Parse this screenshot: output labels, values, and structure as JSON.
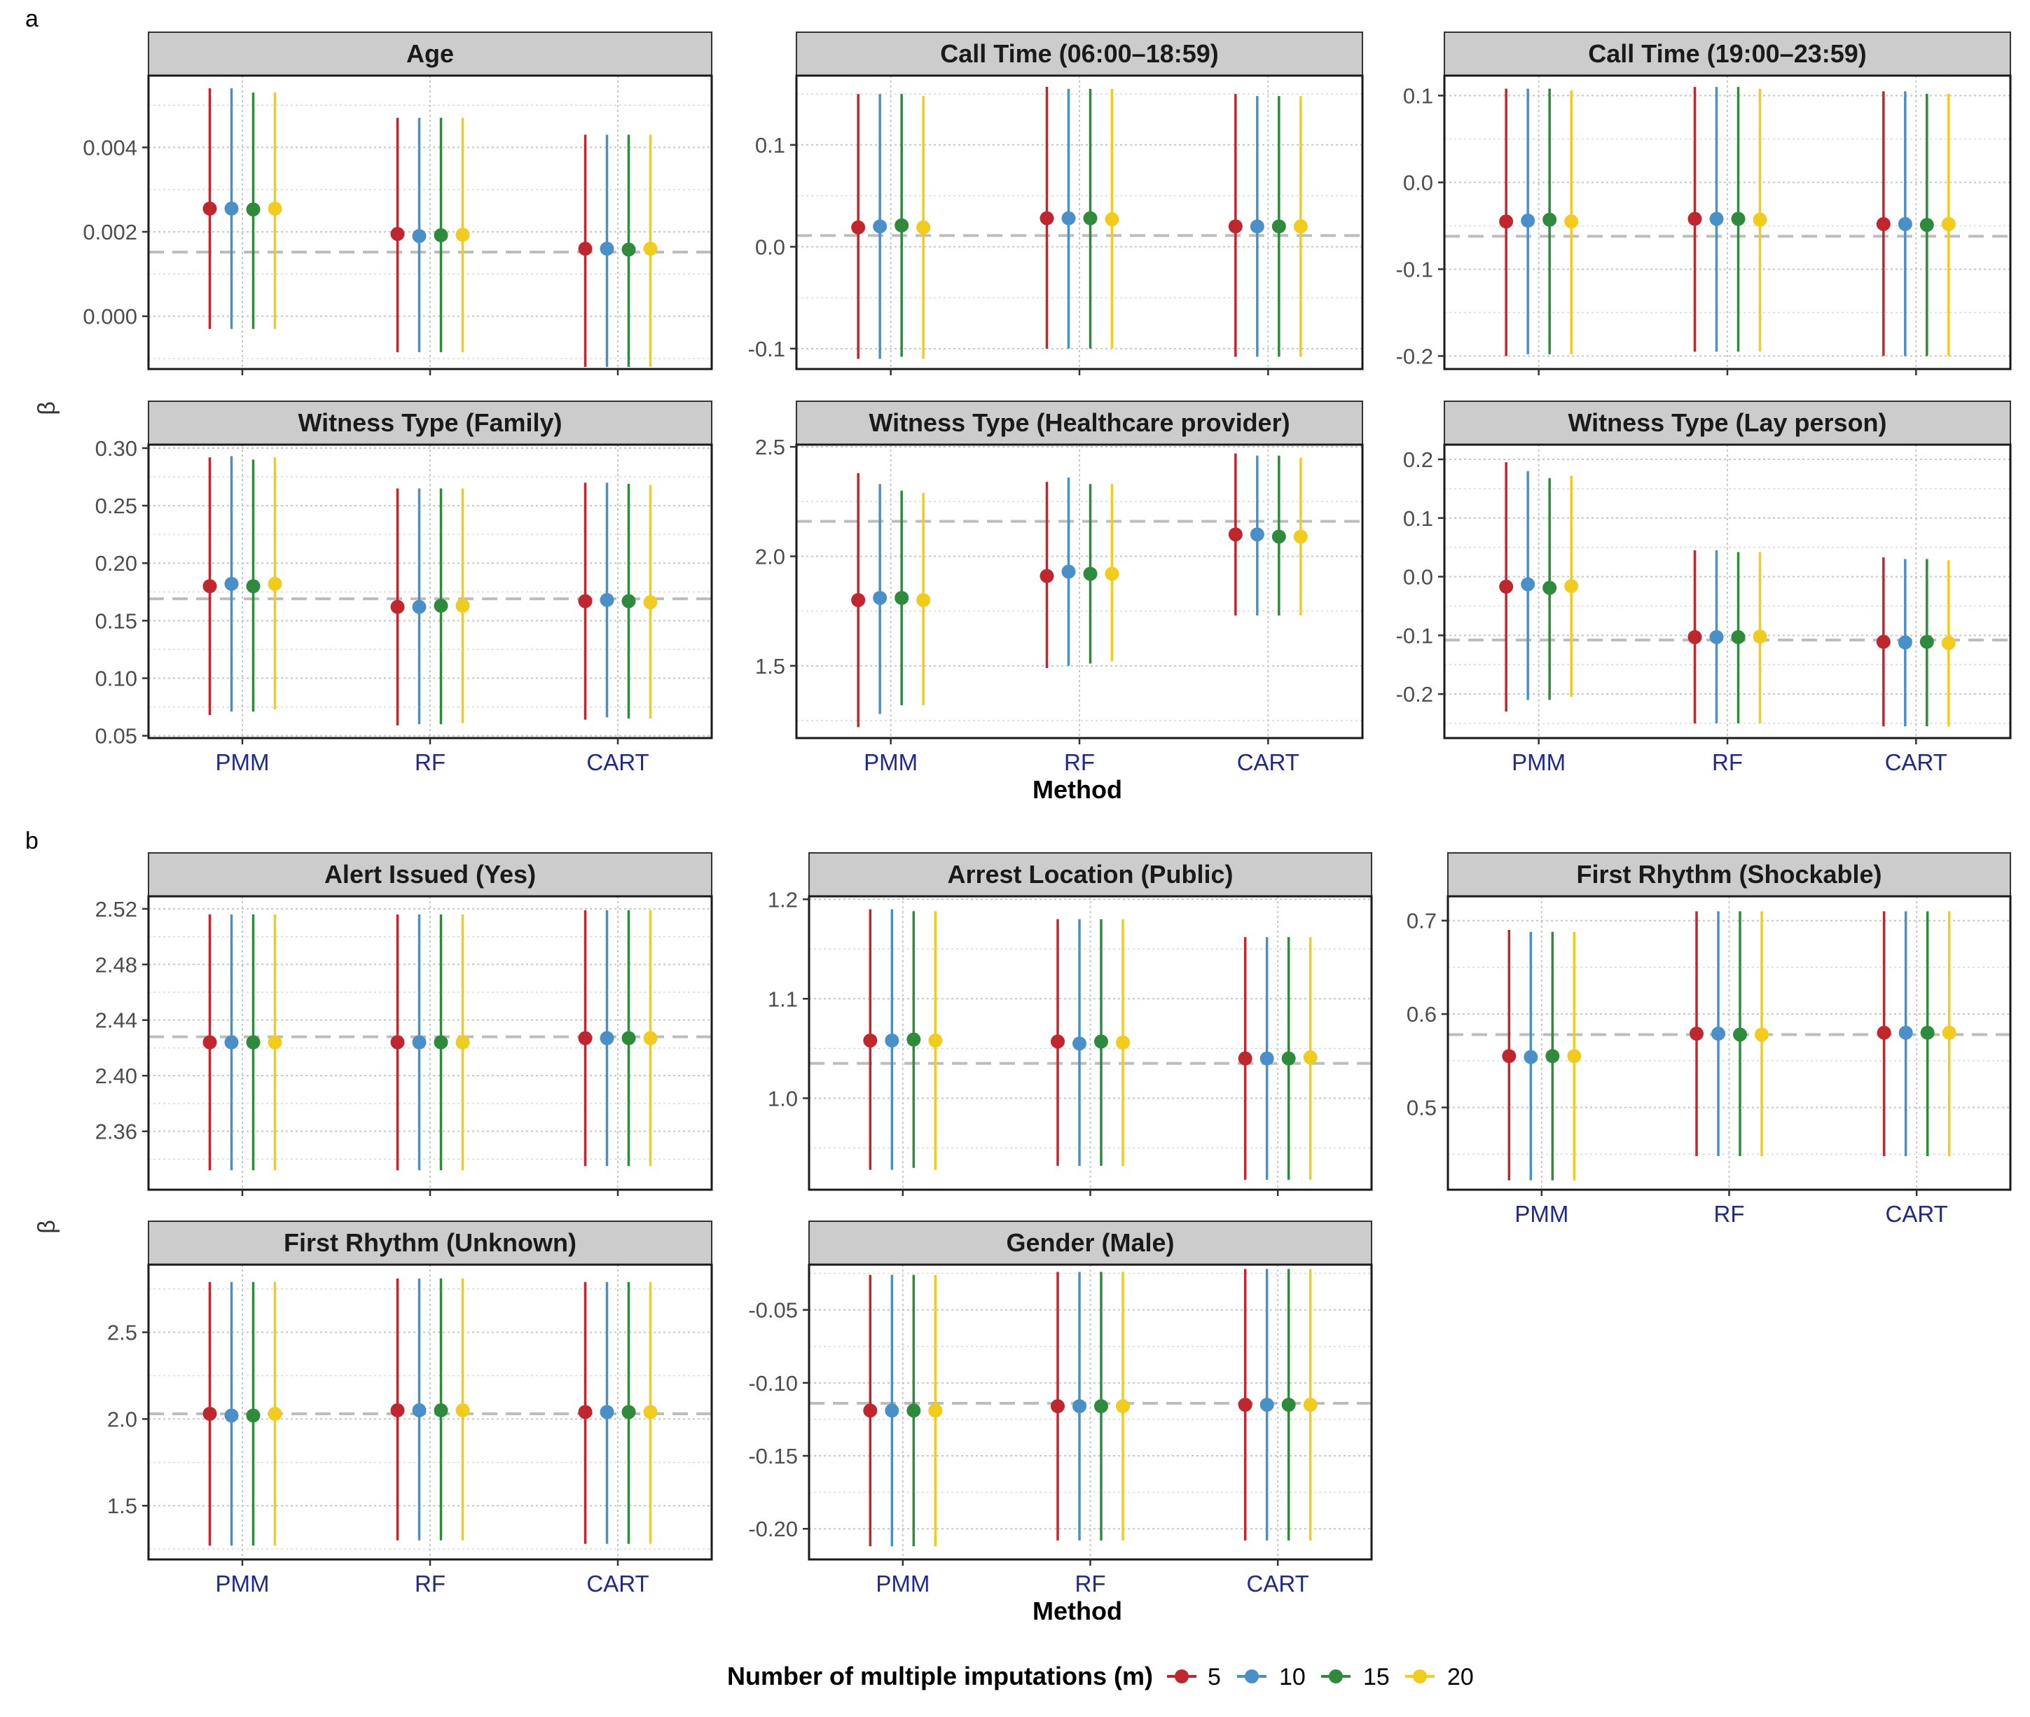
{
  "figure": {
    "panel_labels": [
      "a",
      "b"
    ],
    "y_axis_label": "β",
    "x_axis_label": "Method",
    "methods": [
      "PMM",
      "RF",
      "CART"
    ],
    "legend": {
      "title": "Number of multiple imputations (m)",
      "entries": [
        {
          "label": "5",
          "color": "#c0262d"
        },
        {
          "label": "10",
          "color": "#4a90c8"
        },
        {
          "label": "15",
          "color": "#2e8b3c"
        },
        {
          "label": "20",
          "color": "#f2cc1c"
        }
      ]
    },
    "reference_line_color": "#bdbdbd",
    "strip_color": "#cccccc"
  },
  "chart_data": [
    {
      "type": "scatter",
      "panel": "a",
      "title": "Age",
      "ylim": [
        -0.00125,
        0.0057
      ],
      "yticks": [
        0.0,
        0.002,
        0.004
      ],
      "ytick_labels": [
        "0.000",
        "0.002",
        "0.004"
      ],
      "reference": 0.00152,
      "series": [
        {
          "name": "5",
          "estimate": [
            0.00255,
            0.00195,
            0.0016
          ],
          "lower": [
            -0.0003,
            -0.00085,
            -0.0012
          ],
          "upper": [
            0.0054,
            0.0047,
            0.0043
          ]
        },
        {
          "name": "10",
          "estimate": [
            0.00255,
            0.0019,
            0.0016
          ],
          "lower": [
            -0.0003,
            -0.00085,
            -0.0012
          ],
          "upper": [
            0.0054,
            0.0047,
            0.0043
          ]
        },
        {
          "name": "15",
          "estimate": [
            0.00253,
            0.00192,
            0.00158
          ],
          "lower": [
            -0.0003,
            -0.00085,
            -0.0012
          ],
          "upper": [
            0.0053,
            0.0047,
            0.0043
          ]
        },
        {
          "name": "20",
          "estimate": [
            0.00255,
            0.00193,
            0.0016
          ],
          "lower": [
            -0.0003,
            -0.00085,
            -0.0012
          ],
          "upper": [
            0.0053,
            0.0047,
            0.0043
          ]
        }
      ]
    },
    {
      "type": "scatter",
      "panel": "a",
      "title": "Call Time (06:00–18:59)",
      "ylim": [
        -0.12,
        0.168
      ],
      "yticks": [
        -0.1,
        0.0,
        0.1
      ],
      "ytick_labels": [
        "-0.1",
        "0.0",
        "0.1"
      ],
      "reference": 0.011,
      "series": [
        {
          "name": "5",
          "estimate": [
            0.019,
            0.028,
            0.02
          ],
          "lower": [
            -0.11,
            -0.1,
            -0.108
          ],
          "upper": [
            0.15,
            0.157,
            0.15
          ]
        },
        {
          "name": "10",
          "estimate": [
            0.02,
            0.028,
            0.02
          ],
          "lower": [
            -0.11,
            -0.1,
            -0.108
          ],
          "upper": [
            0.15,
            0.155,
            0.148
          ]
        },
        {
          "name": "15",
          "estimate": [
            0.021,
            0.028,
            0.02
          ],
          "lower": [
            -0.108,
            -0.1,
            -0.108
          ],
          "upper": [
            0.15,
            0.155,
            0.148
          ]
        },
        {
          "name": "20",
          "estimate": [
            0.019,
            0.027,
            0.02
          ],
          "lower": [
            -0.11,
            -0.1,
            -0.108
          ],
          "upper": [
            0.148,
            0.155,
            0.148
          ]
        }
      ]
    },
    {
      "type": "scatter",
      "panel": "a",
      "title": "Call Time (19:00–23:59)",
      "ylim": [
        -0.215,
        0.123
      ],
      "yticks": [
        -0.2,
        -0.1,
        0.0,
        0.1
      ],
      "ytick_labels": [
        "-0.2",
        "-0.1",
        "0.0",
        "0.1"
      ],
      "reference": -0.062,
      "series": [
        {
          "name": "5",
          "estimate": [
            -0.045,
            -0.042,
            -0.048
          ],
          "lower": [
            -0.2,
            -0.195,
            -0.2
          ],
          "upper": [
            0.108,
            0.11,
            0.105
          ]
        },
        {
          "name": "10",
          "estimate": [
            -0.044,
            -0.042,
            -0.048
          ],
          "lower": [
            -0.198,
            -0.195,
            -0.2
          ],
          "upper": [
            0.108,
            0.11,
            0.105
          ]
        },
        {
          "name": "15",
          "estimate": [
            -0.043,
            -0.042,
            -0.049
          ],
          "lower": [
            -0.198,
            -0.195,
            -0.2
          ],
          "upper": [
            0.108,
            0.11,
            0.102
          ]
        },
        {
          "name": "20",
          "estimate": [
            -0.045,
            -0.043,
            -0.048
          ],
          "lower": [
            -0.198,
            -0.195,
            -0.2
          ],
          "upper": [
            0.106,
            0.108,
            0.102
          ]
        }
      ]
    },
    {
      "type": "scatter",
      "panel": "a",
      "title": "Witness Type (Family)",
      "ylim": [
        0.048,
        0.303
      ],
      "yticks": [
        0.05,
        0.1,
        0.15,
        0.2,
        0.25,
        0.3
      ],
      "ytick_labels": [
        "0.05",
        "0.10",
        "0.15",
        "0.20",
        "0.25",
        "0.30"
      ],
      "reference": 0.169,
      "series": [
        {
          "name": "5",
          "estimate": [
            0.18,
            0.162,
            0.167
          ],
          "lower": [
            0.068,
            0.059,
            0.064
          ],
          "upper": [
            0.292,
            0.265,
            0.27
          ]
        },
        {
          "name": "10",
          "estimate": [
            0.182,
            0.162,
            0.168
          ],
          "lower": [
            0.071,
            0.06,
            0.066
          ],
          "upper": [
            0.293,
            0.265,
            0.27
          ]
        },
        {
          "name": "15",
          "estimate": [
            0.18,
            0.163,
            0.167
          ],
          "lower": [
            0.071,
            0.06,
            0.065
          ],
          "upper": [
            0.29,
            0.265,
            0.269
          ]
        },
        {
          "name": "20",
          "estimate": [
            0.182,
            0.163,
            0.166
          ],
          "lower": [
            0.073,
            0.061,
            0.065
          ],
          "upper": [
            0.292,
            0.265,
            0.268
          ]
        }
      ]
    },
    {
      "type": "scatter",
      "panel": "a",
      "title": "Witness Type (Healthcare provider)",
      "ylim": [
        1.17,
        2.51
      ],
      "yticks": [
        1.5,
        2.0,
        2.5
      ],
      "ytick_labels": [
        "1.5",
        "2.0",
        "2.5"
      ],
      "reference": 2.16,
      "series": [
        {
          "name": "5",
          "estimate": [
            1.8,
            1.91,
            2.1
          ],
          "lower": [
            1.22,
            1.49,
            1.73
          ],
          "upper": [
            2.38,
            2.34,
            2.47
          ]
        },
        {
          "name": "10",
          "estimate": [
            1.81,
            1.93,
            2.1
          ],
          "lower": [
            1.28,
            1.5,
            1.73
          ],
          "upper": [
            2.33,
            2.36,
            2.46
          ]
        },
        {
          "name": "15",
          "estimate": [
            1.81,
            1.92,
            2.09
          ],
          "lower": [
            1.32,
            1.51,
            1.73
          ],
          "upper": [
            2.3,
            2.33,
            2.46
          ]
        },
        {
          "name": "20",
          "estimate": [
            1.8,
            1.92,
            2.09
          ],
          "lower": [
            1.32,
            1.52,
            1.73
          ],
          "upper": [
            2.29,
            2.33,
            2.45
          ]
        }
      ]
    },
    {
      "type": "scatter",
      "panel": "a",
      "title": "Witness Type (Lay person)",
      "ylim": [
        -0.275,
        0.225
      ],
      "yticks": [
        -0.2,
        -0.1,
        0.0,
        0.1,
        0.2
      ],
      "ytick_labels": [
        "-0.2",
        "-0.1",
        "0.0",
        "0.1",
        "0.2"
      ],
      "reference": -0.108,
      "series": [
        {
          "name": "5",
          "estimate": [
            -0.017,
            -0.103,
            -0.111
          ],
          "lower": [
            -0.23,
            -0.25,
            -0.255
          ],
          "upper": [
            0.195,
            0.045,
            0.033
          ]
        },
        {
          "name": "10",
          "estimate": [
            -0.013,
            -0.103,
            -0.112
          ],
          "lower": [
            -0.21,
            -0.25,
            -0.255
          ],
          "upper": [
            0.18,
            0.045,
            0.03
          ]
        },
        {
          "name": "15",
          "estimate": [
            -0.019,
            -0.103,
            -0.111
          ],
          "lower": [
            -0.21,
            -0.25,
            -0.255
          ],
          "upper": [
            0.168,
            0.042,
            0.03
          ]
        },
        {
          "name": "20",
          "estimate": [
            -0.016,
            -0.102,
            -0.113
          ],
          "lower": [
            -0.205,
            -0.25,
            -0.255
          ],
          "upper": [
            0.172,
            0.042,
            0.028
          ]
        }
      ]
    },
    {
      "type": "scatter",
      "panel": "b",
      "title": "Alert Issued (Yes)",
      "ylim": [
        2.318,
        2.529
      ],
      "yticks": [
        2.36,
        2.4,
        2.44,
        2.48,
        2.52
      ],
      "ytick_labels": [
        "2.36",
        "2.40",
        "2.44",
        "2.48",
        "2.52"
      ],
      "reference": 2.428,
      "series": [
        {
          "name": "5",
          "estimate": [
            2.424,
            2.424,
            2.427
          ],
          "lower": [
            2.332,
            2.332,
            2.335
          ],
          "upper": [
            2.516,
            2.516,
            2.519
          ]
        },
        {
          "name": "10",
          "estimate": [
            2.424,
            2.424,
            2.427
          ],
          "lower": [
            2.332,
            2.332,
            2.335
          ],
          "upper": [
            2.516,
            2.516,
            2.519
          ]
        },
        {
          "name": "15",
          "estimate": [
            2.424,
            2.424,
            2.427
          ],
          "lower": [
            2.332,
            2.332,
            2.335
          ],
          "upper": [
            2.516,
            2.516,
            2.519
          ]
        },
        {
          "name": "20",
          "estimate": [
            2.424,
            2.424,
            2.427
          ],
          "lower": [
            2.332,
            2.332,
            2.335
          ],
          "upper": [
            2.516,
            2.516,
            2.519
          ]
        }
      ]
    },
    {
      "type": "scatter",
      "panel": "b",
      "title": "Arrest Location (Public)",
      "ylim": [
        0.908,
        1.203
      ],
      "yticks": [
        1.0,
        1.1,
        1.2
      ],
      "ytick_labels": [
        "1.0",
        "1.1",
        "1.2"
      ],
      "reference": 1.035,
      "series": [
        {
          "name": "5",
          "estimate": [
            1.058,
            1.057,
            1.04
          ],
          "lower": [
            0.928,
            0.932,
            0.918
          ],
          "upper": [
            1.19,
            1.18,
            1.162
          ]
        },
        {
          "name": "10",
          "estimate": [
            1.058,
            1.055,
            1.04
          ],
          "lower": [
            0.928,
            0.932,
            0.918
          ],
          "upper": [
            1.19,
            1.18,
            1.162
          ]
        },
        {
          "name": "15",
          "estimate": [
            1.059,
            1.057,
            1.04
          ],
          "lower": [
            0.93,
            0.932,
            0.918
          ],
          "upper": [
            1.188,
            1.18,
            1.162
          ]
        },
        {
          "name": "20",
          "estimate": [
            1.058,
            1.056,
            1.041
          ],
          "lower": [
            0.928,
            0.932,
            0.918
          ],
          "upper": [
            1.188,
            1.18,
            1.162
          ]
        }
      ]
    },
    {
      "type": "scatter",
      "panel": "b",
      "title": "First Rhythm (Shockable)",
      "ylim": [
        0.412,
        0.726
      ],
      "yticks": [
        0.5,
        0.6,
        0.7
      ],
      "ytick_labels": [
        "0.5",
        "0.6",
        "0.7"
      ],
      "reference": 0.578,
      "series": [
        {
          "name": "5",
          "estimate": [
            0.555,
            0.579,
            0.58
          ],
          "lower": [
            0.422,
            0.448,
            0.448
          ],
          "upper": [
            0.69,
            0.71,
            0.71
          ]
        },
        {
          "name": "10",
          "estimate": [
            0.554,
            0.579,
            0.58
          ],
          "lower": [
            0.422,
            0.448,
            0.448
          ],
          "upper": [
            0.688,
            0.71,
            0.71
          ]
        },
        {
          "name": "15",
          "estimate": [
            0.555,
            0.578,
            0.58
          ],
          "lower": [
            0.422,
            0.448,
            0.448
          ],
          "upper": [
            0.688,
            0.71,
            0.71
          ]
        },
        {
          "name": "20",
          "estimate": [
            0.555,
            0.578,
            0.58
          ],
          "lower": [
            0.422,
            0.448,
            0.448
          ],
          "upper": [
            0.688,
            0.71,
            0.71
          ]
        }
      ]
    },
    {
      "type": "scatter",
      "panel": "b",
      "title": "First Rhythm (Unknown)",
      "ylim": [
        1.19,
        2.89
      ],
      "yticks": [
        1.5,
        2.0,
        2.5
      ],
      "ytick_labels": [
        "1.5",
        "2.0",
        "2.5"
      ],
      "reference": 2.03,
      "series": [
        {
          "name": "5",
          "estimate": [
            2.03,
            2.05,
            2.04
          ],
          "lower": [
            1.27,
            1.3,
            1.28
          ],
          "upper": [
            2.79,
            2.81,
            2.79
          ]
        },
        {
          "name": "10",
          "estimate": [
            2.02,
            2.05,
            2.04
          ],
          "lower": [
            1.27,
            1.3,
            1.28
          ],
          "upper": [
            2.79,
            2.81,
            2.79
          ]
        },
        {
          "name": "15",
          "estimate": [
            2.02,
            2.05,
            2.04
          ],
          "lower": [
            1.27,
            1.3,
            1.28
          ],
          "upper": [
            2.79,
            2.81,
            2.79
          ]
        },
        {
          "name": "20",
          "estimate": [
            2.03,
            2.05,
            2.04
          ],
          "lower": [
            1.27,
            1.3,
            1.28
          ],
          "upper": [
            2.79,
            2.81,
            2.79
          ]
        }
      ]
    },
    {
      "type": "scatter",
      "panel": "b",
      "title": "Gender (Male)",
      "ylim": [
        -0.221,
        -0.019
      ],
      "yticks": [
        -0.2,
        -0.15,
        -0.1,
        -0.05
      ],
      "ytick_labels": [
        "-0.20",
        "-0.15",
        "-0.10",
        "-0.05"
      ],
      "reference": -0.114,
      "series": [
        {
          "name": "5",
          "estimate": [
            -0.119,
            -0.116,
            -0.115
          ],
          "lower": [
            -0.212,
            -0.208,
            -0.208
          ],
          "upper": [
            -0.026,
            -0.024,
            -0.022
          ]
        },
        {
          "name": "10",
          "estimate": [
            -0.119,
            -0.116,
            -0.115
          ],
          "lower": [
            -0.212,
            -0.208,
            -0.208
          ],
          "upper": [
            -0.026,
            -0.024,
            -0.022
          ]
        },
        {
          "name": "15",
          "estimate": [
            -0.119,
            -0.116,
            -0.115
          ],
          "lower": [
            -0.212,
            -0.208,
            -0.208
          ],
          "upper": [
            -0.026,
            -0.024,
            -0.022
          ]
        },
        {
          "name": "20",
          "estimate": [
            -0.119,
            -0.116,
            -0.115
          ],
          "lower": [
            -0.212,
            -0.208,
            -0.208
          ],
          "upper": [
            -0.026,
            -0.024,
            -0.022
          ]
        }
      ]
    }
  ]
}
